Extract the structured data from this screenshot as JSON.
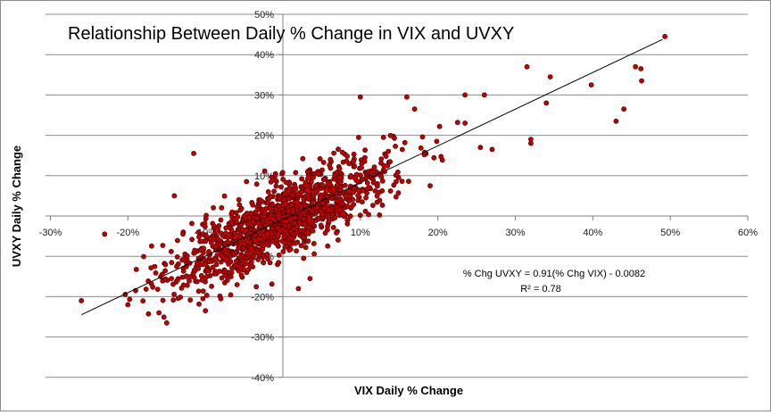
{
  "chart_data": {
    "type": "scatter",
    "title": "Relationship Between Daily % Change in VIX and UVXY",
    "xlabel": "VIX Daily % Change",
    "ylabel": "UVXY Daily % Change",
    "xlim": [
      -0.3,
      0.6
    ],
    "ylim": [
      -0.4,
      0.5
    ],
    "x_ticks": [
      -0.3,
      -0.2,
      -0.1,
      0.1,
      0.2,
      0.3,
      0.4,
      0.5,
      0.6
    ],
    "x_tick_labels": [
      "-30%",
      "-20%",
      "-10%",
      "10%",
      "20%",
      "30%",
      "40%",
      "50%",
      "60%"
    ],
    "y_ticks": [
      0.5,
      0.4,
      0.3,
      0.2,
      0.1,
      -0.1,
      -0.2,
      -0.3,
      -0.4
    ],
    "y_tick_labels": [
      "50%",
      "40%",
      "30%",
      "20%",
      "10%",
      "-10%",
      "-20%",
      "-30%",
      "-40%"
    ],
    "grid": "horizontal",
    "trendline": {
      "slope": 0.91,
      "intercept": -0.0082,
      "x_range": [
        -0.26,
        0.49
      ],
      "equation_label": "% Chg UVXY = 0.91(% Chg VIX) - 0.0082",
      "r2_label": "R² = 0.78"
    },
    "colors": {
      "marker_fill": "#c00000",
      "marker_edge": "#3a0000",
      "trendline": "#000000",
      "grid": "#8c8c8c"
    },
    "series": [
      {
        "marker": "circle",
        "outliers": [
          [
            -0.26,
            -0.21
          ],
          [
            -0.23,
            -0.045
          ],
          [
            -0.2,
            -0.22
          ],
          [
            -0.19,
            -0.185
          ],
          [
            -0.16,
            -0.24
          ],
          [
            -0.15,
            -0.265
          ],
          [
            -0.14,
            0.05
          ],
          [
            -0.115,
            0.155
          ],
          [
            -0.08,
            -0.205
          ],
          [
            -0.1,
            -0.235
          ],
          [
            0.02,
            -0.18
          ],
          [
            0.035,
            -0.155
          ],
          [
            0.1,
            0.295
          ],
          [
            0.16,
            0.295
          ],
          [
            0.17,
            0.265
          ],
          [
            0.19,
            0.075
          ],
          [
            0.235,
            0.23
          ],
          [
            0.235,
            0.3
          ],
          [
            0.26,
            0.3
          ],
          [
            0.255,
            0.17
          ],
          [
            0.27,
            0.165
          ],
          [
            0.315,
            0.37
          ],
          [
            0.32,
            0.19
          ],
          [
            0.32,
            0.18
          ],
          [
            0.34,
            0.28
          ],
          [
            0.345,
            0.345
          ],
          [
            0.398,
            0.325
          ],
          [
            0.43,
            0.235
          ],
          [
            0.44,
            0.265
          ],
          [
            0.455,
            0.37
          ],
          [
            0.462,
            0.365
          ],
          [
            0.463,
            0.335
          ],
          [
            0.493,
            0.445
          ]
        ],
        "cluster": {
          "count": 1350,
          "x_mean": 0.0,
          "x_sd": 0.07,
          "slope": 0.91,
          "intercept": -0.0082,
          "residual_sd": 0.045
        }
      }
    ]
  }
}
